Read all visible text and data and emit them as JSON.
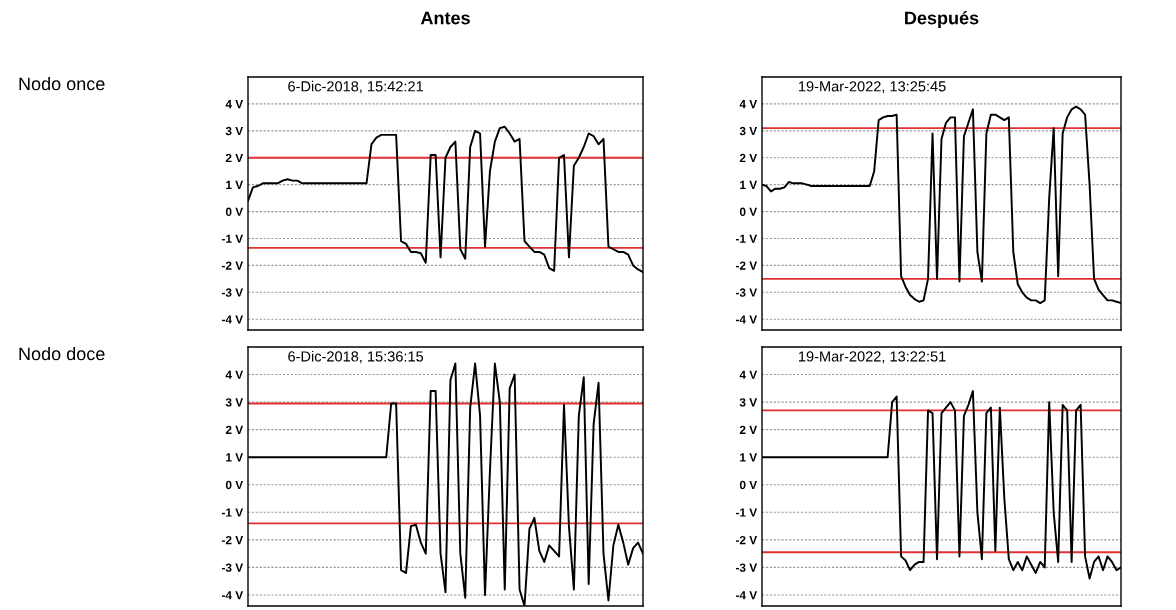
{
  "chart_data": [
    {
      "type": "line",
      "title": "Antes",
      "ylabel": "Nodo once",
      "annotations": [
        "6-Dic-2018, 15:42:21"
      ],
      "categories": [
        null,
        null,
        null,
        null,
        null,
        null,
        null,
        null,
        null,
        null,
        null,
        null,
        null,
        null,
        null,
        null,
        null,
        null,
        null,
        null,
        null,
        null,
        null,
        null,
        null,
        null,
        null,
        null,
        null,
        null,
        null,
        null,
        null,
        null,
        null,
        null,
        null,
        null,
        null,
        null,
        null,
        null,
        null,
        null,
        null,
        null,
        null,
        null,
        null,
        null,
        null,
        null,
        null,
        null,
        null,
        null,
        null,
        null,
        null,
        null,
        null,
        null,
        null,
        null,
        null,
        null,
        null,
        null,
        null,
        null,
        null,
        null,
        null,
        null,
        null,
        null,
        null,
        null,
        null,
        null,
        null
      ],
      "series": [
        {
          "color": "#000000",
          "values": [
            0.4,
            0.9,
            0.95,
            1.05,
            1.05,
            1.05,
            1.05,
            1.15,
            1.2,
            1.15,
            1.15,
            1.05,
            1.05,
            1.05,
            1.05,
            1.05,
            1.05,
            1.05,
            1.05,
            1.05,
            1.05,
            1.05,
            1.05,
            1.05,
            1.05,
            2.5,
            2.75,
            2.85,
            2.85,
            2.85,
            2.85,
            -1.1,
            -1.2,
            -1.5,
            -1.5,
            -1.55,
            -1.9,
            2.1,
            2.1,
            -1.7,
            2.0,
            2.4,
            2.6,
            -1.4,
            -1.75,
            2.4,
            3.0,
            2.9,
            -1.3,
            1.5,
            2.6,
            3.1,
            3.15,
            2.9,
            2.6,
            2.7,
            -1.1,
            -1.3,
            -1.5,
            -1.5,
            -1.6,
            -2.1,
            -2.2,
            2.0,
            2.1,
            -1.7,
            1.7,
            2.0,
            2.4,
            2.9,
            2.8,
            2.5,
            2.7,
            -1.3,
            -1.4,
            -1.5,
            -1.5,
            -1.6,
            -2.0,
            -2.15,
            -2.25
          ]
        }
      ],
      "ylim": [
        -4.4,
        5.0
      ],
      "yticks": [
        {
          "value": 4,
          "label": "4 V"
        },
        {
          "value": 3,
          "label": "3 V"
        },
        {
          "value": 2,
          "label": "2 V"
        },
        {
          "value": 1,
          "label": "1 V"
        },
        {
          "value": 0,
          "label": "0 V"
        },
        {
          "value": -1,
          "label": "-1 V"
        },
        {
          "value": -2,
          "label": "-2 V"
        },
        {
          "value": -3,
          "label": "-3 V"
        },
        {
          "value": -4,
          "label": "-4 V"
        }
      ],
      "ref_lines": [
        {
          "axis": "y",
          "value": 2.0,
          "color": "#e03030"
        },
        {
          "axis": "y",
          "value": -1.35,
          "color": "#e03030"
        }
      ],
      "grid": "y",
      "tick_labels": "y",
      "marker": "none",
      "line_style": "solid"
    },
    {
      "type": "line",
      "title": "Después",
      "annotations": [
        "19-Mar-2022, 13:25:45"
      ],
      "categories": [
        null,
        null,
        null,
        null,
        null,
        null,
        null,
        null,
        null,
        null,
        null,
        null,
        null,
        null,
        null,
        null,
        null,
        null,
        null,
        null,
        null,
        null,
        null,
        null,
        null,
        null,
        null,
        null,
        null,
        null,
        null,
        null,
        null,
        null,
        null,
        null,
        null,
        null,
        null,
        null,
        null,
        null,
        null,
        null,
        null,
        null,
        null,
        null,
        null,
        null,
        null,
        null,
        null,
        null,
        null,
        null,
        null,
        null,
        null,
        null,
        null,
        null,
        null,
        null,
        null,
        null,
        null,
        null,
        null,
        null,
        null,
        null,
        null,
        null,
        null,
        null,
        null,
        null,
        null,
        null,
        null
      ],
      "series": [
        {
          "color": "#000000",
          "values": [
            1.0,
            0.95,
            0.75,
            0.85,
            0.85,
            0.9,
            1.1,
            1.05,
            1.05,
            1.05,
            1.0,
            0.95,
            0.95,
            0.95,
            0.95,
            0.95,
            0.95,
            0.95,
            0.95,
            0.95,
            0.95,
            0.95,
            0.95,
            0.95,
            0.95,
            1.5,
            3.4,
            3.5,
            3.55,
            3.55,
            3.6,
            -2.4,
            -2.8,
            -3.1,
            -3.25,
            -3.35,
            -3.3,
            -2.5,
            2.9,
            -2.5,
            2.7,
            3.3,
            3.5,
            3.5,
            -2.6,
            2.8,
            3.3,
            3.8,
            -1.5,
            -2.6,
            2.9,
            3.6,
            3.6,
            3.5,
            3.4,
            3.5,
            -1.5,
            -2.7,
            -3.0,
            -3.2,
            -3.3,
            -3.3,
            -3.4,
            -3.3,
            0.5,
            3.1,
            -2.4,
            2.9,
            3.5,
            3.8,
            3.9,
            3.8,
            3.6,
            1.0,
            -2.5,
            -2.9,
            -3.1,
            -3.3,
            -3.3,
            -3.35,
            -3.4
          ]
        }
      ],
      "ylim": [
        -4.4,
        5.0
      ],
      "yticks": [
        {
          "value": 4,
          "label": "4 V"
        },
        {
          "value": 3,
          "label": "3 V"
        },
        {
          "value": 2,
          "label": "2 V"
        },
        {
          "value": 1,
          "label": "1 V"
        },
        {
          "value": 0,
          "label": "0 V"
        },
        {
          "value": -1,
          "label": "-1 V"
        },
        {
          "value": -2,
          "label": "-2 V"
        },
        {
          "value": -3,
          "label": "-3 V"
        },
        {
          "value": -4,
          "label": "-4 V"
        }
      ],
      "ref_lines": [
        {
          "axis": "y",
          "value": 3.1,
          "color": "#e03030"
        },
        {
          "axis": "y",
          "value": -2.5,
          "color": "#e03030"
        }
      ],
      "grid": "y",
      "tick_labels": "y",
      "marker": "none",
      "line_style": "solid"
    },
    {
      "type": "line",
      "ylabel": "Nodo doce",
      "annotations": [
        "6-Dic-2018, 15:36:15"
      ],
      "categories": [
        null,
        null,
        null,
        null,
        null,
        null,
        null,
        null,
        null,
        null,
        null,
        null,
        null,
        null,
        null,
        null,
        null,
        null,
        null,
        null,
        null,
        null,
        null,
        null,
        null,
        null,
        null,
        null,
        null,
        null,
        null,
        null,
        null,
        null,
        null,
        null,
        null,
        null,
        null,
        null,
        null,
        null,
        null,
        null,
        null,
        null,
        null,
        null,
        null,
        null,
        null,
        null,
        null,
        null,
        null,
        null,
        null,
        null,
        null,
        null,
        null,
        null,
        null,
        null,
        null,
        null,
        null,
        null,
        null,
        null,
        null,
        null,
        null,
        null,
        null,
        null,
        null,
        null,
        null,
        null,
        null
      ],
      "series": [
        {
          "color": "#000000",
          "values": [
            1.0,
            1.0,
            1.0,
            1.0,
            1.0,
            1.0,
            1.0,
            1.0,
            1.0,
            1.0,
            1.0,
            1.0,
            1.0,
            1.0,
            1.0,
            1.0,
            1.0,
            1.0,
            1.0,
            1.0,
            1.0,
            1.0,
            1.0,
            1.0,
            1.0,
            1.0,
            1.0,
            1.0,
            1.0,
            2.95,
            2.95,
            -3.1,
            -3.2,
            -1.5,
            -1.45,
            -2.1,
            -2.5,
            3.4,
            3.4,
            -2.5,
            -3.9,
            3.8,
            4.4,
            -2.5,
            -4.1,
            2.8,
            4.4,
            2.5,
            -4.0,
            0.5,
            4.4,
            3.0,
            -3.8,
            3.5,
            4.0,
            -3.8,
            -4.4,
            -1.6,
            -1.2,
            -2.4,
            -2.8,
            -2.2,
            -2.4,
            -2.6,
            2.9,
            -1.5,
            -3.8,
            2.5,
            3.9,
            -3.6,
            2.2,
            3.7,
            -2.5,
            -4.2,
            -2.2,
            -1.45,
            -2.1,
            -2.9,
            -2.3,
            -2.1,
            -2.5
          ]
        }
      ],
      "ylim": [
        -4.4,
        5.0
      ],
      "yticks": [
        {
          "value": 4,
          "label": "4 V"
        },
        {
          "value": 3,
          "label": "3 V"
        },
        {
          "value": 2,
          "label": "2 V"
        },
        {
          "value": 1,
          "label": "1 V"
        },
        {
          "value": 0,
          "label": "0 V"
        },
        {
          "value": -1,
          "label": "-1 V"
        },
        {
          "value": -2,
          "label": "-2 V"
        },
        {
          "value": -3,
          "label": "-3 V"
        },
        {
          "value": -4,
          "label": "-4 V"
        }
      ],
      "ref_lines": [
        {
          "axis": "y",
          "value": 2.95,
          "color": "#e03030"
        },
        {
          "axis": "y",
          "value": -1.4,
          "color": "#e03030"
        }
      ],
      "grid": "y",
      "tick_labels": "y",
      "marker": "none",
      "line_style": "solid"
    },
    {
      "type": "line",
      "annotations": [
        "19-Mar-2022, 13:22:51"
      ],
      "categories": [
        null,
        null,
        null,
        null,
        null,
        null,
        null,
        null,
        null,
        null,
        null,
        null,
        null,
        null,
        null,
        null,
        null,
        null,
        null,
        null,
        null,
        null,
        null,
        null,
        null,
        null,
        null,
        null,
        null,
        null,
        null,
        null,
        null,
        null,
        null,
        null,
        null,
        null,
        null,
        null,
        null,
        null,
        null,
        null,
        null,
        null,
        null,
        null,
        null,
        null,
        null,
        null,
        null,
        null,
        null,
        null,
        null,
        null,
        null,
        null,
        null,
        null,
        null,
        null,
        null,
        null,
        null,
        null,
        null,
        null,
        null,
        null,
        null,
        null,
        null,
        null,
        null,
        null,
        null,
        null,
        null
      ],
      "series": [
        {
          "color": "#000000",
          "values": [
            1.0,
            1.0,
            1.0,
            1.0,
            1.0,
            1.0,
            1.0,
            1.0,
            1.0,
            1.0,
            1.0,
            1.0,
            1.0,
            1.0,
            1.0,
            1.0,
            1.0,
            1.0,
            1.0,
            1.0,
            1.0,
            1.0,
            1.0,
            1.0,
            1.0,
            1.0,
            1.0,
            1.0,
            1.0,
            3.0,
            3.2,
            -2.6,
            -2.75,
            -3.1,
            -2.9,
            -2.8,
            -2.8,
            2.7,
            2.6,
            -2.7,
            2.6,
            2.8,
            3.0,
            2.7,
            -2.6,
            2.5,
            2.9,
            3.4,
            -1.0,
            -2.7,
            2.6,
            2.8,
            -2.4,
            2.8,
            -0.5,
            -2.7,
            -3.1,
            -2.8,
            -3.1,
            -2.6,
            -2.9,
            -3.2,
            -2.8,
            -3.0,
            3.0,
            -1.0,
            -2.8,
            2.9,
            2.7,
            -2.8,
            2.7,
            2.9,
            -2.6,
            -3.4,
            -2.8,
            -2.6,
            -3.1,
            -2.6,
            -2.8,
            -3.1,
            -3.0
          ]
        }
      ],
      "ylim": [
        -4.4,
        5.0
      ],
      "yticks": [
        {
          "value": 4,
          "label": "4 V"
        },
        {
          "value": 3,
          "label": "3 V"
        },
        {
          "value": 2,
          "label": "2 V"
        },
        {
          "value": 1,
          "label": "1 V"
        },
        {
          "value": 0,
          "label": "0 V"
        },
        {
          "value": -1,
          "label": "-1 V"
        },
        {
          "value": -2,
          "label": "-2 V"
        },
        {
          "value": -3,
          "label": "-3 V"
        },
        {
          "value": -4,
          "label": "-4 V"
        }
      ],
      "ref_lines": [
        {
          "axis": "y",
          "value": 2.7,
          "color": "#e03030"
        },
        {
          "axis": "y",
          "value": -2.45,
          "color": "#e03030"
        }
      ],
      "grid": "y",
      "tick_labels": "y",
      "marker": "none",
      "line_style": "solid"
    }
  ]
}
